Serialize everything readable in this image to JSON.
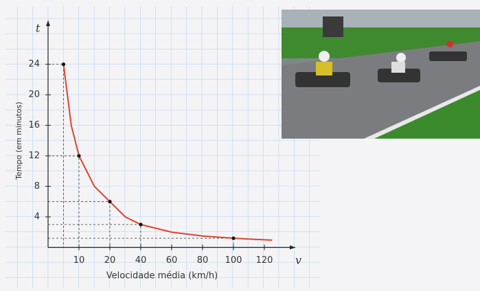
{
  "chart_data": {
    "type": "line",
    "x_label": "Velocidade média (km/h)",
    "y_label": "Tempo (em minutos)",
    "x_symbol": "v",
    "y_symbol": "t",
    "x": [
      5,
      7.5,
      10,
      15,
      20,
      30,
      40,
      60,
      80,
      100,
      120,
      125
    ],
    "values": [
      24,
      16,
      12,
      8,
      6,
      4,
      3,
      2,
      1.5,
      1.2,
      1,
      0.96
    ],
    "points": {
      "x": [
        5,
        10,
        20,
        40,
        100
      ],
      "values": [
        24,
        12,
        6,
        3,
        1.2
      ]
    },
    "color": "#d9452a",
    "xlim": [
      0,
      140
    ],
    "xticks": [
      10,
      20,
      40,
      60,
      80,
      100,
      120
    ],
    "ylim": [
      0,
      29
    ],
    "yticks": [
      4,
      8,
      12,
      16,
      20,
      24
    ]
  }
}
